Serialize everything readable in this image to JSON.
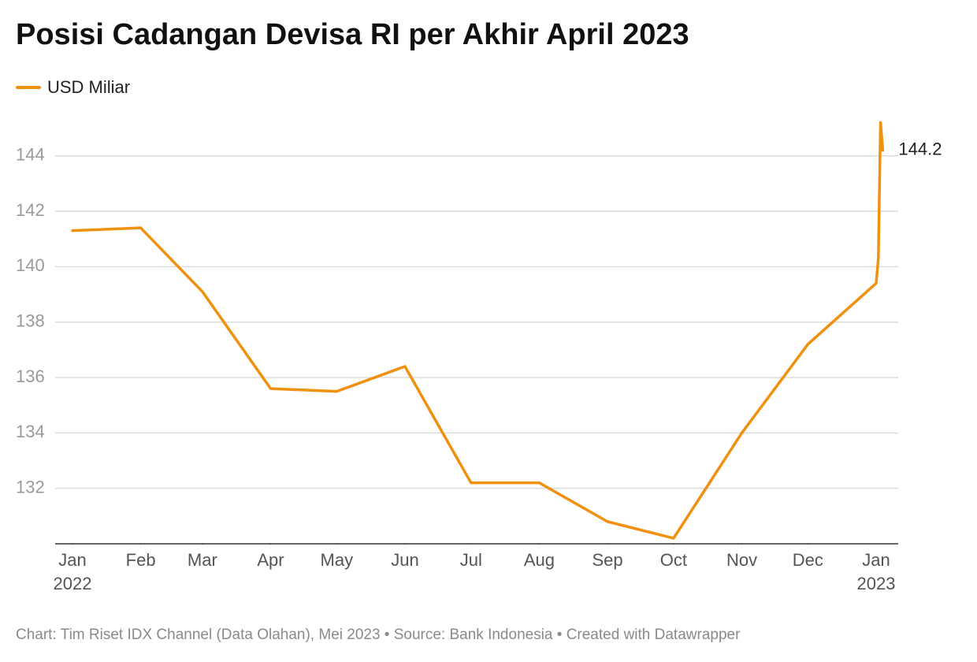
{
  "chart_data": {
    "type": "line",
    "title": "Posisi Cadangan Devisa RI per Akhir April 2023",
    "x": [
      "2022-01-01",
      "2022-02-01",
      "2022-03-01",
      "2022-04-01",
      "2022-05-01",
      "2022-06-01",
      "2022-07-01",
      "2022-08-01",
      "2022-09-01",
      "2022-10-01",
      "2022-11-01",
      "2022-12-01",
      "2023-01-01",
      "2023-01-02",
      "2023-01-03",
      "2023-01-04"
    ],
    "series": [
      {
        "name": "USD Miliar",
        "color": "#f0900f",
        "values": [
          141.3,
          141.4,
          139.1,
          135.6,
          135.5,
          136.4,
          132.2,
          132.2,
          130.8,
          130.2,
          134.0,
          137.2,
          139.4,
          140.3,
          145.2,
          144.2
        ]
      }
    ],
    "end_label": "144.2",
    "ylim": [
      130,
      145.5
    ],
    "yticks": [
      132,
      134,
      136,
      138,
      140,
      142,
      144
    ],
    "xticks": [
      {
        "value": "2022-01-01",
        "label": "Jan\n2022"
      },
      {
        "value": "2022-02-01",
        "label": "Feb"
      },
      {
        "value": "2022-03-01",
        "label": "Mar"
      },
      {
        "value": "2022-04-01",
        "label": "Apr"
      },
      {
        "value": "2022-05-01",
        "label": "May"
      },
      {
        "value": "2022-06-01",
        "label": "Jun"
      },
      {
        "value": "2022-07-01",
        "label": "Jul"
      },
      {
        "value": "2022-08-01",
        "label": "Aug"
      },
      {
        "value": "2022-09-01",
        "label": "Sep"
      },
      {
        "value": "2022-10-01",
        "label": "Oct"
      },
      {
        "value": "2022-11-01",
        "label": "Nov"
      },
      {
        "value": "2022-12-01",
        "label": "Dec"
      },
      {
        "value": "2023-01-01",
        "label": "Jan\n2023"
      }
    ],
    "grid": true,
    "legend": "top-left",
    "footer": "Chart: Tim Riset IDX Channel (Data Olahan), Mei 2023 • Source: Bank Indonesia • Created with Datawrapper"
  }
}
